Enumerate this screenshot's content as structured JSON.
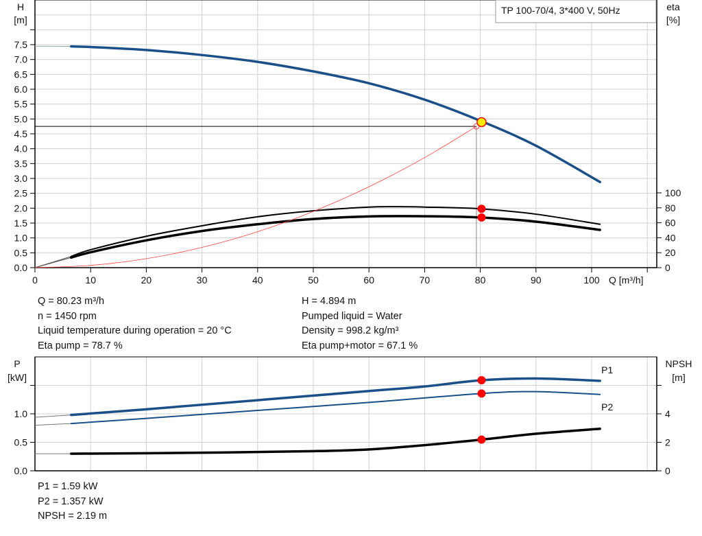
{
  "legend_box": "TP 100-70/4, 3*400 V, 50Hz",
  "colors": {
    "head": "#1a4f87",
    "power": "#1a4f87",
    "efficiency": "#000000",
    "npsh": "#000000",
    "system": "#ff4040",
    "marker": "#ff0000",
    "operating_point": "#ffee00",
    "grid": "#d0d0d0"
  },
  "info_top": {
    "left": [
      "Q = 80.23 m³/h",
      "n = 1450 rpm",
      "Liquid temperature during operation = 20 °C",
      "Eta pump = 78.7 %"
    ],
    "right": [
      "H = 4.894 m",
      "Pumped liquid = Water",
      "Density = 998.2 kg/m³",
      "Eta pump+motor = 67.1 %"
    ]
  },
  "info_bottom": [
    "P1 = 1.59 kW",
    "P2 = 1.357 kW",
    "NPSH = 2.19 m"
  ],
  "chart_data": [
    {
      "type": "line",
      "title": "",
      "xlabel": "Q [m³/h]",
      "ylabel": "H\n[m]",
      "ylabel_lines": [
        "H",
        "[m]"
      ],
      "y2label_lines": [
        "eta",
        "[%]"
      ],
      "xlim": [
        0,
        110
      ],
      "ylim": [
        0,
        9
      ],
      "y2lim": [
        0,
        100
      ],
      "grid": true,
      "x_ticks": [
        "0",
        "10",
        "20",
        "30",
        "40",
        "50",
        "60",
        "70",
        "80",
        "90",
        "100"
      ],
      "y_ticks": [
        "0.0",
        "0.5",
        "1.0",
        "1.5",
        "2.0",
        "2.5",
        "3.0",
        "3.5",
        "4.0",
        "4.5",
        "5.0",
        "5.5",
        "6.0",
        "6.5",
        "7.0",
        "7.5"
      ],
      "y2_ticks": [
        "0",
        "20",
        "40",
        "60",
        "80",
        "100"
      ],
      "series": [
        {
          "key": "head",
          "axis": "left",
          "x": [
            0,
            6.5,
            10,
            20,
            30,
            40,
            50,
            60,
            70,
            80,
            90,
            101.5
          ],
          "y": [
            7.45,
            7.44,
            7.42,
            7.32,
            7.15,
            6.92,
            6.6,
            6.2,
            5.65,
            4.94,
            4.1,
            2.88
          ]
        },
        {
          "key": "eta_pump",
          "axis": "right",
          "x": [
            0,
            6.5,
            10,
            20,
            30,
            40,
            50,
            60,
            65,
            70,
            80,
            90,
            101.5
          ],
          "y": [
            0,
            15,
            24,
            42,
            56,
            68,
            76,
            81,
            81.5,
            81,
            78.7,
            71.5,
            58
          ]
        },
        {
          "key": "eta_pump_motor",
          "axis": "right",
          "x": [
            0,
            6.5,
            10,
            20,
            30,
            40,
            50,
            60,
            70,
            80,
            90,
            101.5
          ],
          "y": [
            0,
            13.5,
            20.6,
            36.5,
            49,
            58,
            65,
            68.5,
            68.7,
            67.1,
            61.5,
            50.5
          ]
        },
        {
          "key": "system_curve",
          "axis": "left",
          "x": [
            0,
            10,
            20,
            30,
            40,
            50,
            60,
            70,
            79.3
          ],
          "y": [
            0,
            0.076,
            0.302,
            0.68,
            1.21,
            1.89,
            2.72,
            3.7,
            4.75
          ]
        }
      ],
      "operating_point": {
        "q": 80.23,
        "h": 4.894,
        "eta_pump": 78.7,
        "eta_pump_motor": 67.1
      },
      "duty_point": {
        "q": 79.3,
        "h": 4.75
      }
    },
    {
      "type": "line",
      "title": "",
      "xlim": [
        0,
        110
      ],
      "ylabel_lines": [
        "P",
        "[kW]"
      ],
      "y2label_lines": [
        "NPSH",
        "[m]"
      ],
      "ylim": [
        0,
        2.0
      ],
      "y2lim": [
        0,
        8
      ],
      "grid": true,
      "y_ticks": [
        "0.0",
        "0.5",
        "1.0"
      ],
      "y2_ticks": [
        "0",
        "2",
        "4"
      ],
      "series": [
        {
          "key": "P1",
          "name": "P1",
          "axis": "left",
          "x": [
            0,
            6.5,
            20,
            40,
            60,
            70,
            80.23,
            90,
            101.5
          ],
          "y": [
            0.94,
            0.98,
            1.08,
            1.24,
            1.4,
            1.48,
            1.59,
            1.62,
            1.58
          ]
        },
        {
          "key": "P2",
          "name": "P2",
          "axis": "left",
          "x": [
            0,
            6.5,
            20,
            40,
            60,
            80.23,
            90,
            101.5
          ],
          "y": [
            0.8,
            0.83,
            0.92,
            1.06,
            1.2,
            1.357,
            1.39,
            1.34
          ]
        },
        {
          "key": "NPSH",
          "axis": "right",
          "x": [
            0,
            6.5,
            30,
            50,
            60,
            70,
            80.23,
            90,
            101.5
          ],
          "y": [
            1.2,
            1.2,
            1.27,
            1.38,
            1.5,
            1.8,
            2.19,
            2.6,
            2.95
          ]
        }
      ],
      "operating_point": {
        "q": 80.23,
        "p1": 1.59,
        "p2": 1.357,
        "npsh": 2.19
      }
    }
  ]
}
